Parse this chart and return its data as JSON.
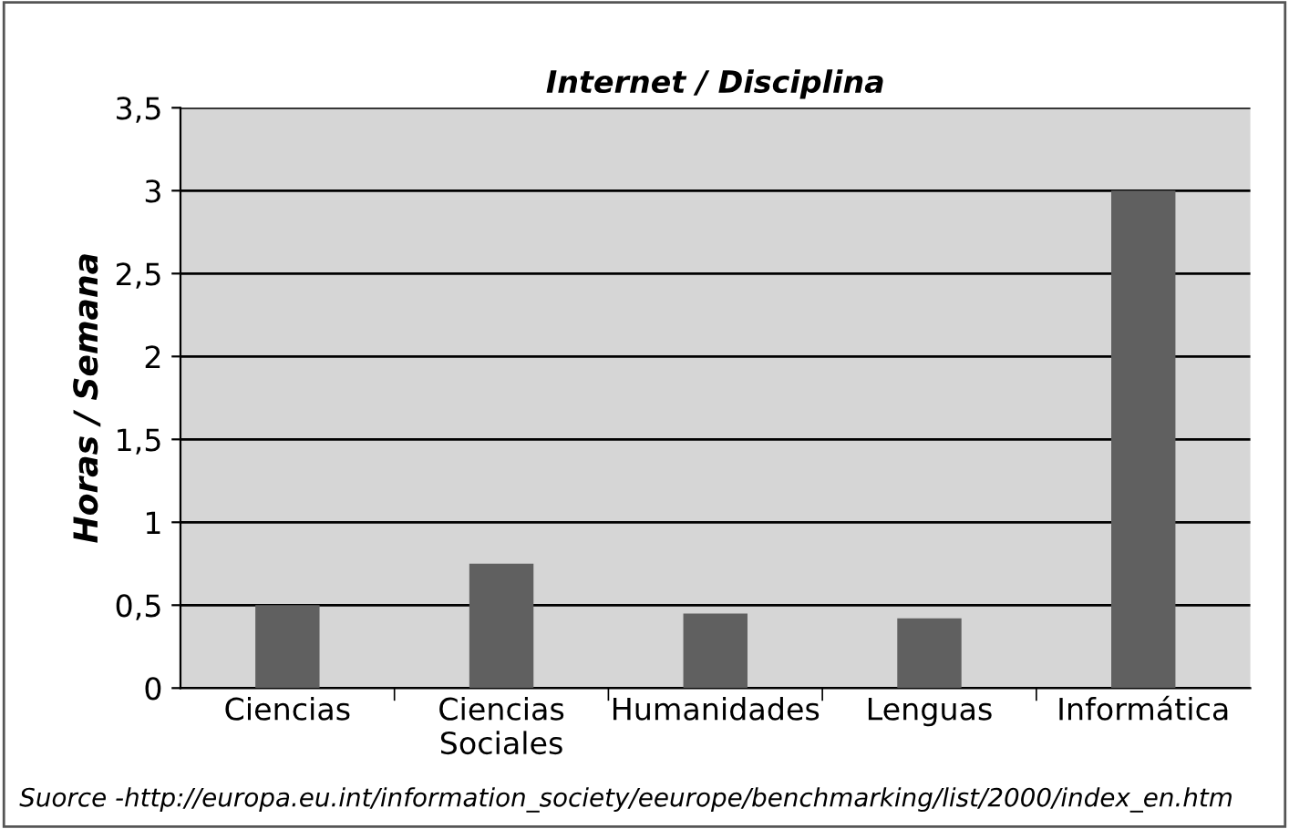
{
  "chart_data": {
    "type": "bar",
    "title": "Internet / Disciplina",
    "ylabel": "Horas / Semana",
    "categories": [
      "Ciencias",
      "Ciencias\nSociales",
      "Humanidades",
      "Lenguas",
      "Informática"
    ],
    "values": [
      0.5,
      0.75,
      0.45,
      0.42,
      3
    ],
    "color": "#606060",
    "ylim": [
      0,
      3.5
    ],
    "yticks": [
      {
        "value": 0,
        "label": "0"
      },
      {
        "value": 0.5,
        "label": "0,5"
      },
      {
        "value": 1,
        "label": "1"
      },
      {
        "value": 1.5,
        "label": "1,5"
      },
      {
        "value": 2,
        "label": "2"
      },
      {
        "value": 2.5,
        "label": "2,5"
      },
      {
        "value": 3,
        "label": "3"
      },
      {
        "value": 3.5,
        "label": "3,5"
      }
    ],
    "grid": "y",
    "annotations": [
      "Suorce -http://europa.eu.int/information_society/eeurope/benchmarking/list/2000/index_en.htm"
    ]
  }
}
